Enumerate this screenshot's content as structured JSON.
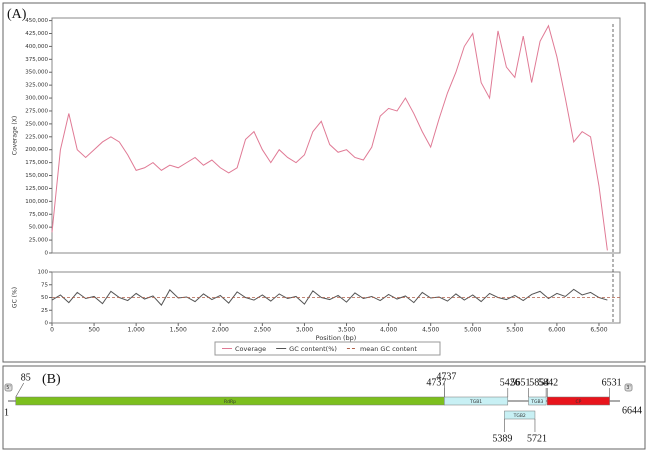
{
  "panel_labels": {
    "a": "(A)",
    "b": "(B)"
  },
  "chart_data": [
    {
      "type": "line",
      "y_label": "Coverage (X)",
      "x": [
        0,
        100,
        200,
        300,
        400,
        500,
        600,
        700,
        800,
        900,
        1000,
        1100,
        1200,
        1300,
        1400,
        1500,
        1600,
        1700,
        1800,
        1900,
        2000,
        2100,
        2200,
        2300,
        2400,
        2500,
        2600,
        2700,
        2800,
        2900,
        3000,
        3100,
        3200,
        3300,
        3400,
        3500,
        3600,
        3700,
        3800,
        3900,
        4000,
        4100,
        4200,
        4300,
        4400,
        4500,
        4600,
        4700,
        4800,
        4900,
        5000,
        5100,
        5200,
        5300,
        5400,
        5500,
        5600,
        5700,
        5800,
        5900,
        6000,
        6100,
        6200,
        6300,
        6400,
        6500,
        6600
      ],
      "series": [
        {
          "name": "Coverage",
          "color": "#e07a95",
          "values": [
            40000,
            200000,
            270000,
            200000,
            185000,
            200000,
            215000,
            225000,
            215000,
            190000,
            160000,
            165000,
            175000,
            160000,
            170000,
            165000,
            175000,
            185000,
            170000,
            180000,
            165000,
            155000,
            165000,
            220000,
            235000,
            200000,
            175000,
            200000,
            185000,
            175000,
            190000,
            235000,
            255000,
            210000,
            195000,
            200000,
            185000,
            180000,
            205000,
            265000,
            280000,
            275000,
            300000,
            270000,
            235000,
            205000,
            260000,
            310000,
            350000,
            400000,
            425000,
            330000,
            300000,
            430000,
            360000,
            340000,
            420000,
            330000,
            410000,
            440000,
            380000,
            300000,
            215000,
            235000,
            225000,
            130000,
            5000
          ]
        }
      ],
      "xlim": [
        0,
        6750
      ],
      "ylim": [
        0,
        455000
      ],
      "yticks": [
        0,
        {
          "value": 25000,
          "label": "25,000"
        },
        {
          "value": 50000,
          "label": "50,000"
        },
        {
          "value": 75000,
          "label": "75,000"
        },
        {
          "value": 100000,
          "label": "100,000"
        },
        {
          "value": 125000,
          "label": "125,000"
        },
        {
          "value": 150000,
          "label": "150,000"
        },
        {
          "value": 175000,
          "label": "175,000"
        },
        {
          "value": 200000,
          "label": "200,000"
        },
        {
          "value": 225000,
          "label": "225,000"
        },
        {
          "value": 250000,
          "label": "250,000"
        },
        {
          "value": 275000,
          "label": "275,000"
        },
        {
          "value": 300000,
          "label": "300,000"
        },
        {
          "value": 325000,
          "label": "325,000"
        },
        {
          "value": 350000,
          "label": "350,000"
        },
        {
          "value": 375000,
          "label": "375,000"
        },
        {
          "value": 400000,
          "label": "400,000"
        },
        {
          "value": 425000,
          "label": "425,000"
        },
        {
          "value": 450000,
          "label": "450,000"
        }
      ]
    },
    {
      "type": "line",
      "y_label": "GC (%)",
      "x_label": "Position (bp)",
      "x": [
        0,
        100,
        200,
        300,
        400,
        500,
        600,
        700,
        800,
        900,
        1000,
        1100,
        1200,
        1300,
        1400,
        1500,
        1600,
        1700,
        1800,
        1900,
        2000,
        2100,
        2200,
        2300,
        2400,
        2500,
        2600,
        2700,
        2800,
        2900,
        3000,
        3100,
        3200,
        3300,
        3400,
        3500,
        3600,
        3700,
        3800,
        3900,
        4000,
        4100,
        4200,
        4300,
        4400,
        4500,
        4600,
        4700,
        4800,
        4900,
        5000,
        5100,
        5200,
        5300,
        5400,
        5500,
        5600,
        5700,
        5800,
        5900,
        6000,
        6100,
        6200,
        6300,
        6400,
        6500,
        6600
      ],
      "series": [
        {
          "name": "GC content(%)",
          "color": "#555555",
          "values": [
            45,
            55,
            40,
            60,
            48,
            52,
            38,
            62,
            50,
            44,
            58,
            47,
            53,
            35,
            65,
            49,
            51,
            42,
            57,
            46,
            54,
            39,
            61,
            50,
            45,
            55,
            43,
            57,
            48,
            52,
            37,
            63,
            50,
            46,
            54,
            41,
            59,
            48,
            52,
            44,
            56,
            47,
            53,
            40,
            60,
            49,
            51,
            43,
            57,
            45,
            55,
            42,
            58,
            50,
            46,
            54,
            44,
            56,
            62,
            48,
            58,
            52,
            66,
            55,
            60,
            50,
            45
          ]
        },
        {
          "name": "mean GC content",
          "color": "#b0604a",
          "value": 50,
          "style": "dashed"
        }
      ],
      "xlim": [
        0,
        6750
      ],
      "ylim": [
        0,
        100
      ],
      "yticks": [
        0,
        25,
        50,
        75,
        100
      ],
      "xticks": [
        0,
        500,
        {
          "value": 1000,
          "label": "1,000"
        },
        {
          "value": 1500,
          "label": "1,500"
        },
        {
          "value": 2000,
          "label": "2,000"
        },
        {
          "value": 2500,
          "label": "2,500"
        },
        {
          "value": 3000,
          "label": "3,000"
        },
        {
          "value": 3500,
          "label": "3,500"
        },
        {
          "value": 4000,
          "label": "4,000"
        },
        {
          "value": 4500,
          "label": "4,500"
        },
        {
          "value": 5000,
          "label": "5,000"
        },
        {
          "value": 5500,
          "label": "5,500"
        },
        {
          "value": 6000,
          "label": "6,000"
        },
        {
          "value": 6500,
          "label": "6,500"
        }
      ]
    }
  ],
  "genome_map": {
    "start": 1,
    "end": 6644,
    "five_prime": "5'",
    "three_prime": "3'",
    "genes": [
      {
        "name": "RdRp",
        "start": 85,
        "end": 4737,
        "color": "#7cbf1e"
      },
      {
        "name": "TGB1",
        "start": 4737,
        "end": 5426,
        "color": "#c8f0f4"
      },
      {
        "name": "TGB2",
        "start": 5389,
        "end": 5721,
        "color": "#c8f0f4"
      },
      {
        "name": "TGB3",
        "start": 5651,
        "end": 5842,
        "color": "#c8f0f4"
      },
      {
        "name": "CP",
        "start": 5854,
        "end": 6531,
        "color": "#e8141c"
      }
    ]
  }
}
